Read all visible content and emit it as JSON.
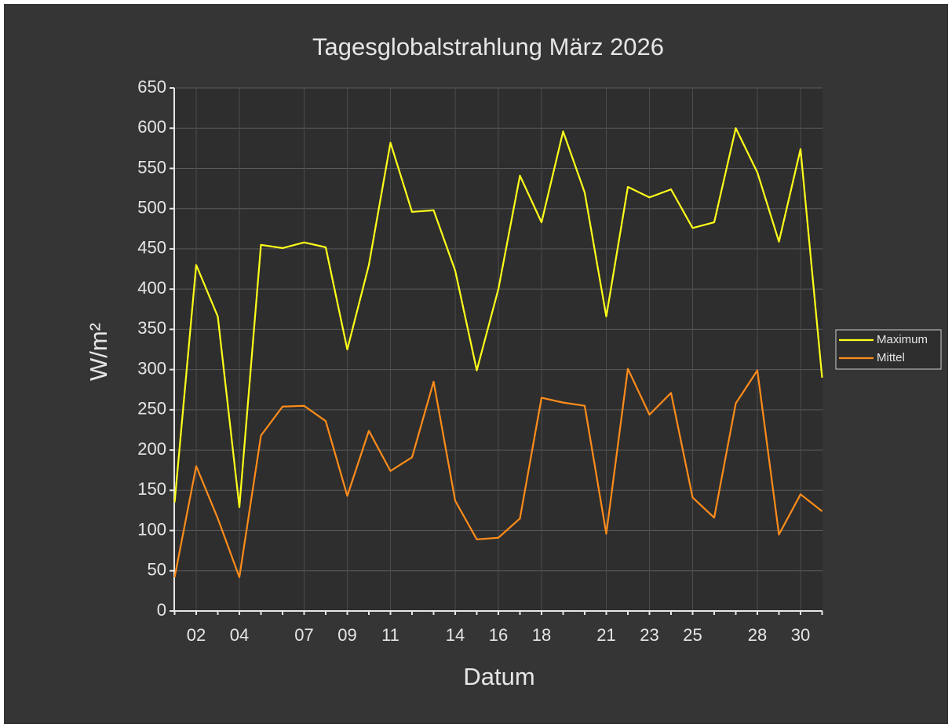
{
  "chart_data": {
    "type": "line",
    "title": "Tagesglobalstrahlung März 2026",
    "xlabel": "Datum",
    "ylabel": "W/m²",
    "categories": [
      null,
      "02",
      null,
      "04",
      null,
      null,
      "07",
      null,
      "09",
      null,
      "11",
      null,
      null,
      "14",
      null,
      "16",
      null,
      "18",
      null,
      null,
      "21",
      null,
      "23",
      null,
      "25",
      null,
      null,
      "28",
      null,
      "30",
      null
    ],
    "series": [
      {
        "name": "Maximum",
        "color": "#ffff1a",
        "values": [
          135,
          430,
          366,
          129,
          455,
          451,
          458,
          452,
          325,
          430,
          582,
          496,
          498,
          423,
          299,
          400,
          541,
          483,
          596,
          520,
          366,
          527,
          514,
          524,
          476,
          483,
          600,
          545,
          459,
          574,
          290
        ]
      },
      {
        "name": "Mittel",
        "color": "#ff8c1a",
        "values": [
          42,
          180,
          115,
          42,
          218,
          254,
          255,
          236,
          143,
          224,
          174,
          191,
          285,
          137,
          89,
          91,
          115,
          265,
          259,
          255,
          96,
          301,
          244,
          271,
          141,
          116,
          258,
          299,
          95,
          145,
          124
        ]
      }
    ],
    "ylim": [
      0,
      650
    ],
    "yticks": [
      0,
      50,
      100,
      150,
      200,
      250,
      300,
      350,
      400,
      450,
      500,
      550,
      600,
      650
    ],
    "grid": true,
    "legend": "right"
  }
}
